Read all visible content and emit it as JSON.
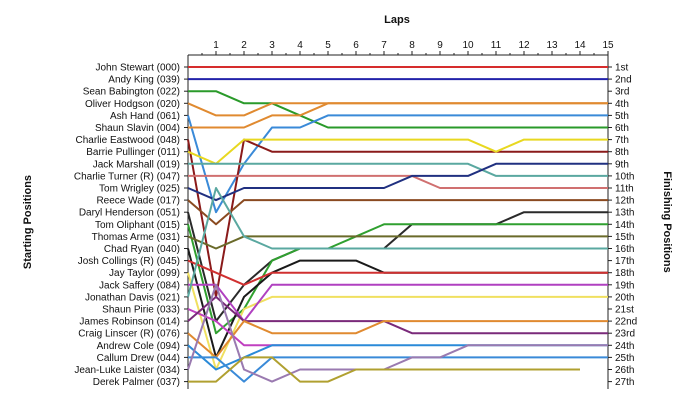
{
  "chart_data": {
    "type": "line",
    "title": "Laps",
    "ylabel_left": "Starting Positions",
    "ylabel_right": "Finishing Positions",
    "laps": [
      1,
      2,
      3,
      4,
      5,
      6,
      7,
      8,
      9,
      10,
      11,
      12,
      13,
      14,
      15
    ],
    "starting_positions": [
      "John Stewart (000)",
      "Andy King (039)",
      "Sean Babington (022)",
      "Oliver Hodgson (020)",
      "Ash Hand (061)",
      "Shaun Slavin (004)",
      "Charlie Eastwood (048)",
      "Barrie Pullinger (011)",
      "Jack Marshall (019)",
      "Charlie Turner (R) (047)",
      "Tom Wrigley (025)",
      "Reece Wade (017)",
      "Daryl Henderson (051)",
      "Tom Oliphant (015)",
      "Thomas Arme (031)",
      "Chad Ryan (040)",
      "Josh Collings (R) (045)",
      "Jay Taylor (099)",
      "Jack Saffery (084)",
      "Jonathan Davis (021)",
      "Shaun Pirie (033)",
      "James Robinson (014)",
      "Craig Linscer (R) (076)",
      "Andrew Cole (094)",
      "Callum Drew (044)",
      "Jean-Luke Laister (034)",
      "Derek Palmer (037)"
    ],
    "finishing_positions": [
      "1st",
      "2nd",
      "3rd",
      "4th",
      "5th",
      "6th",
      "7th",
      "8th",
      "9th",
      "10th",
      "11th",
      "12th",
      "13th",
      "14th",
      "15th",
      "16th",
      "17th",
      "18th",
      "19th",
      "20th",
      "21st",
      "22nd",
      "23rd",
      "24th",
      "25th",
      "26th",
      "27th"
    ],
    "series": [
      {
        "color": "#d62d2d",
        "values": [
          1,
          1,
          1,
          1,
          1,
          1,
          1,
          1,
          1,
          1,
          1,
          1,
          1,
          1,
          1,
          1
        ]
      },
      {
        "color": "#2222aa",
        "values": [
          2,
          2,
          2,
          2,
          2,
          2,
          2,
          2,
          2,
          2,
          2,
          2,
          2,
          2,
          2,
          2
        ]
      },
      {
        "color": "#2a9a2a",
        "values": [
          3,
          3,
          4,
          4,
          5,
          6,
          6,
          6,
          6,
          6,
          6,
          6,
          6,
          6,
          6,
          6
        ]
      },
      {
        "color": "#e08a30",
        "values": [
          4,
          5,
          5,
          4,
          4,
          4,
          4,
          4,
          4,
          4,
          4,
          4,
          4,
          4,
          4,
          4
        ]
      },
      {
        "color": "#3a8ad8",
        "values": [
          5,
          13,
          9,
          6,
          6,
          5,
          5,
          5,
          5,
          5,
          5,
          5,
          5,
          5,
          5,
          5
        ]
      },
      {
        "color": "#e08a30",
        "values": [
          6,
          6,
          6,
          5,
          5,
          4,
          4,
          4,
          4,
          4,
          4,
          4,
          4,
          4,
          4,
          4
        ]
      },
      {
        "color": "#8a1a1a",
        "values": [
          7,
          20,
          7,
          8,
          8,
          8,
          8,
          8,
          8,
          8,
          8,
          8,
          8,
          8,
          8,
          8
        ]
      },
      {
        "color": "#e8d820",
        "values": [
          8,
          9,
          7,
          7,
          7,
          7,
          7,
          7,
          7,
          7,
          7,
          8,
          7,
          7,
          7,
          7
        ]
      },
      {
        "color": "#5aa8a0",
        "values": [
          9,
          9,
          9,
          9,
          9,
          9,
          9,
          9,
          9,
          9,
          9,
          10,
          10,
          10,
          10,
          10
        ]
      },
      {
        "color": "#d07070",
        "values": [
          10,
          10,
          10,
          10,
          10,
          10,
          10,
          10,
          10,
          11,
          11,
          11,
          11,
          11,
          11,
          11
        ]
      },
      {
        "color": "#203080",
        "values": [
          11,
          12,
          11,
          11,
          11,
          11,
          11,
          11,
          10,
          10,
          10,
          9,
          9,
          9,
          9,
          9
        ]
      },
      {
        "color": "#8a4a20",
        "values": [
          12,
          14,
          12,
          12,
          12,
          12,
          12,
          12,
          12,
          12,
          12,
          12,
          12,
          12,
          12,
          12
        ]
      },
      {
        "color": "#2a2a2a",
        "values": [
          13,
          22,
          19,
          17,
          16,
          16,
          16,
          16,
          14,
          14,
          14,
          14,
          13,
          13,
          13,
          13
        ]
      },
      {
        "color": "#30a030",
        "values": [
          14,
          23,
          21,
          17,
          16,
          16,
          15,
          14,
          14,
          14,
          14,
          14,
          14,
          14,
          14,
          14
        ]
      },
      {
        "color": "#6a6a2a",
        "values": [
          15,
          16,
          15,
          15,
          15,
          15,
          15,
          15,
          15,
          15,
          15,
          15,
          15,
          15,
          15,
          15
        ]
      },
      {
        "color": "#1a1a1a",
        "values": [
          16,
          25,
          20,
          18,
          17,
          17,
          17,
          18,
          18,
          18,
          18,
          18,
          18,
          18,
          18,
          18
        ]
      },
      {
        "color": "#d03030",
        "values": [
          17,
          18,
          19,
          18,
          18,
          18,
          18,
          18,
          18,
          18,
          18,
          18,
          18,
          18,
          18,
          18
        ]
      },
      {
        "color": "#f0e060",
        "values": [
          18,
          26,
          21,
          20,
          20,
          20,
          20,
          20,
          20,
          20,
          20,
          20,
          20,
          20,
          20,
          20
        ]
      },
      {
        "color": "#b040c0",
        "values": [
          19,
          19,
          22,
          19,
          19,
          19,
          19,
          19,
          19,
          19,
          19,
          19,
          19,
          19,
          19,
          19
        ]
      },
      {
        "color": "#5aa8a0",
        "values": [
          20,
          11,
          15,
          16,
          16,
          16,
          16,
          16,
          16,
          16,
          16,
          16,
          16,
          16,
          16,
          16
        ]
      },
      {
        "color": "#c040c0",
        "values": [
          21,
          22,
          24,
          24,
          24
        ]
      },
      {
        "color": "#7a2a7a",
        "values": [
          22,
          20,
          22,
          22,
          22,
          22,
          22,
          22,
          23,
          23,
          23,
          23,
          23,
          23,
          23,
          23
        ]
      },
      {
        "color": "#e08a30",
        "values": [
          23,
          25,
          22,
          23,
          23,
          23,
          23,
          22,
          22,
          22,
          22,
          22,
          22,
          22,
          22,
          22
        ]
      },
      {
        "color": "#2a8ad8",
        "values": [
          24,
          26,
          25,
          24,
          24,
          24,
          24,
          24,
          24,
          24,
          24,
          24,
          24,
          24,
          24,
          24
        ]
      },
      {
        "color": "#3a8ad8",
        "values": [
          25,
          25,
          27,
          25,
          25,
          25,
          25,
          25,
          25,
          25,
          25,
          25,
          25,
          25,
          25,
          25
        ]
      },
      {
        "color": "#9a7ab0",
        "values": [
          26,
          19,
          26,
          27,
          26,
          26,
          26,
          26,
          25,
          25,
          24,
          24,
          24,
          24,
          24,
          24
        ]
      },
      {
        "color": "#b0a030",
        "values": [
          27,
          27,
          25,
          25,
          27,
          27,
          26,
          26,
          26,
          26,
          26,
          26,
          26,
          26,
          26
        ]
      }
    ]
  }
}
